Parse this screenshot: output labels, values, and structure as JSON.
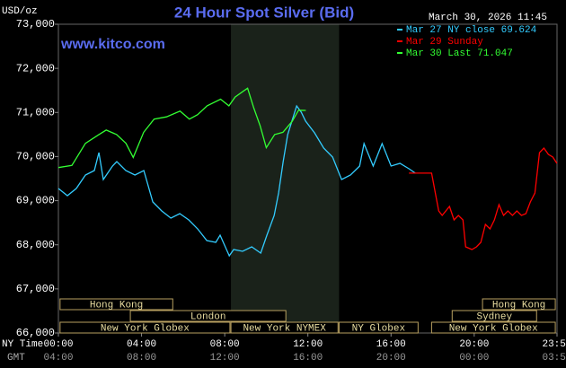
{
  "chart_data": {
    "type": "line",
    "title": "24 Hour Spot Silver (Bid)",
    "timestamp": "March 30, 2026 11:45",
    "website": "www.kitco.com",
    "ylabel": "USD/oz",
    "xlabel": "NY Time",
    "x2label": "GMT",
    "xlim": [
      0,
      23.983
    ],
    "ylim": [
      66000,
      73000
    ],
    "xticks": [
      {
        "value": 0,
        "label": "00:00"
      },
      {
        "value": 4,
        "label": "04:00"
      },
      {
        "value": 8,
        "label": "08:00"
      },
      {
        "value": 12,
        "label": "12:00"
      },
      {
        "value": 16,
        "label": "16:00"
      },
      {
        "value": 20,
        "label": "20:00"
      },
      {
        "value": 23.983,
        "label": "23:59"
      }
    ],
    "x2tick_labels": [
      "04:00",
      "08:00",
      "12:00",
      "16:00",
      "20:00",
      "00:00",
      "03:59"
    ],
    "yticks": [
      {
        "value": 66000,
        "label": "66,000"
      },
      {
        "value": 67000,
        "label": "67,000"
      },
      {
        "value": 68000,
        "label": "68,000"
      },
      {
        "value": 69000,
        "label": "69,000"
      },
      {
        "value": 70000,
        "label": "70,000"
      },
      {
        "value": 71000,
        "label": "71,000"
      },
      {
        "value": 72000,
        "label": "72,000"
      },
      {
        "value": 73000,
        "label": "73,000"
      }
    ],
    "shaded": {
      "start": 8.3,
      "end": 13.5
    },
    "series": [
      {
        "name": "Mar 27 NY close 69.624",
        "color": "#33ccff",
        "x": [
          0,
          0.43,
          0.86,
          1.3,
          1.73,
          1.95,
          2.16,
          2.6,
          2.81,
          3.24,
          3.68,
          4.11,
          4.54,
          4.97,
          5.41,
          5.84,
          6.27,
          6.7,
          7.14,
          7.57,
          7.78,
          8.22,
          8.43,
          8.86,
          9.3,
          9.73,
          10.03,
          10.38,
          10.59,
          10.81,
          11.03,
          11.46,
          11.68,
          11.89,
          12.32,
          12.76,
          13.19,
          13.62,
          14.05,
          14.49,
          14.7,
          15.14,
          15.57,
          16.0,
          16.43,
          16.86,
          17.17
        ],
        "values": [
          69276,
          69113,
          69276,
          69581,
          69683,
          70090,
          69479,
          69785,
          69886,
          69683,
          69581,
          69683,
          68971,
          68767,
          68604,
          68706,
          68564,
          68360,
          68096,
          68055,
          68218,
          67750,
          67892,
          67851,
          67953,
          67811,
          68218,
          68665,
          69174,
          69886,
          70497,
          71148,
          71006,
          70802,
          70538,
          70192,
          69988,
          69479,
          69581,
          69785,
          70293,
          69785,
          70293,
          69785,
          69846,
          69724,
          69624
        ]
      },
      {
        "name": "Mar 29 Sunday",
        "color": "#ff0000",
        "x": [
          16.86,
          17.95,
          18.29,
          18.46,
          18.81,
          19.03,
          19.24,
          19.46,
          19.59,
          19.89,
          20.11,
          20.32,
          20.54,
          20.76,
          20.97,
          21.19,
          21.41,
          21.62,
          21.84,
          22.05,
          22.27,
          22.49,
          22.7,
          22.92,
          23.14,
          23.35,
          23.57,
          23.78,
          23.98
        ],
        "values": [
          69624,
          69624,
          68767,
          68665,
          68869,
          68564,
          68665,
          68564,
          67953,
          67892,
          67953,
          68055,
          68462,
          68360,
          68564,
          68910,
          68665,
          68767,
          68665,
          68767,
          68665,
          68706,
          68971,
          69174,
          70090,
          70192,
          70050,
          69988,
          69846
        ]
      },
      {
        "name": "Mar 30 Last 71.047",
        "color": "#33ff33",
        "x": [
          0,
          0.65,
          1.3,
          1.95,
          2.3,
          2.8,
          3.25,
          3.6,
          4.1,
          4.6,
          5.2,
          5.85,
          6.3,
          6.7,
          7.15,
          7.8,
          8.2,
          8.5,
          8.95,
          9.1,
          9.4,
          9.7,
          10.0,
          10.4,
          10.8,
          11.25,
          11.55,
          11.9
        ],
        "values": [
          69750,
          69800,
          70300,
          70500,
          70600,
          70500,
          70300,
          69980,
          70550,
          70850,
          70900,
          71030,
          70850,
          70950,
          71150,
          71300,
          71150,
          71350,
          71500,
          71550,
          71100,
          70700,
          70200,
          70500,
          70550,
          70800,
          71050,
          71047
        ]
      }
    ],
    "sessions": [
      [
        {
          "label": "Hong Kong",
          "start": 0.08,
          "end": 5.5
        },
        {
          "label": "Hong Kong",
          "start": 20.4,
          "end": 23.9
        }
      ],
      [
        {
          "label": "London",
          "start": 3.46,
          "end": 10.94
        },
        {
          "label": "Sydney",
          "start": 18.94,
          "end": 23.0
        }
      ],
      [
        {
          "label": "New York Globex",
          "start": 0.08,
          "end": 8.25
        },
        {
          "label": "New York NYMEX",
          "start": 8.3,
          "end": 13.45
        },
        {
          "label": "NY Globex",
          "start": 13.5,
          "end": 17.3
        },
        {
          "label": "New York Globex",
          "start": 17.95,
          "end": 23.9
        }
      ]
    ]
  }
}
